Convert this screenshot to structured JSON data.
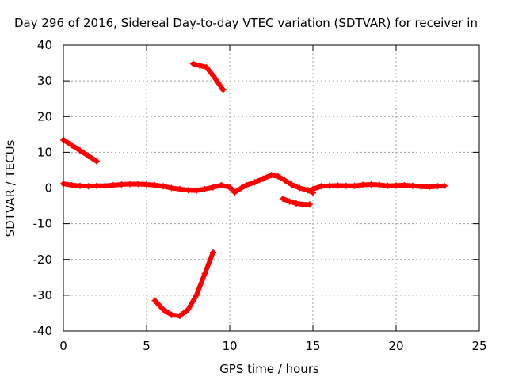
{
  "chart_data": {
    "type": "scatter",
    "title": "Day 296 of 2016, Sidereal Day-to-day VTEC variation (SDTVAR) for receiver in",
    "xlabel": "GPS time / hours",
    "ylabel": "SDTVAR / TECUs",
    "xlim": [
      0,
      25
    ],
    "ylim": [
      -40,
      40
    ],
    "xticks": [
      0,
      5,
      10,
      15,
      20,
      25
    ],
    "yticks": [
      -40,
      -30,
      -20,
      -10,
      0,
      10,
      20,
      30,
      40
    ],
    "grid": true,
    "color": "#ff0000",
    "series": [
      {
        "values": [
          [
            0.0,
            1.2
          ],
          [
            0.5,
            0.8
          ],
          [
            1.0,
            0.6
          ],
          [
            1.5,
            0.5
          ],
          [
            2.0,
            0.6
          ],
          [
            2.5,
            0.6
          ],
          [
            3.0,
            0.8
          ],
          [
            3.5,
            1.0
          ],
          [
            4.0,
            1.1
          ],
          [
            4.5,
            1.1
          ],
          [
            5.0,
            1.0
          ],
          [
            5.5,
            0.8
          ],
          [
            6.0,
            0.5
          ],
          [
            6.5,
            0.0
          ],
          [
            7.0,
            -0.3
          ],
          [
            7.5,
            -0.6
          ],
          [
            8.0,
            -0.7
          ],
          [
            8.5,
            -0.3
          ],
          [
            9.0,
            0.2
          ],
          [
            9.5,
            0.8
          ],
          [
            10.0,
            0.2
          ],
          [
            10.3,
            -1.2
          ]
        ]
      },
      {
        "values": [
          [
            10.3,
            -1.2
          ],
          [
            10.7,
            0.0
          ],
          [
            11.0,
            0.8
          ],
          [
            11.5,
            1.6
          ],
          [
            12.0,
            2.6
          ],
          [
            12.5,
            3.6
          ],
          [
            12.9,
            3.3
          ],
          [
            13.3,
            2.2
          ],
          [
            13.7,
            1.0
          ],
          [
            14.2,
            0.0
          ],
          [
            14.7,
            -0.6
          ],
          [
            15.0,
            -1.3
          ]
        ]
      },
      {
        "values": [
          [
            15.0,
            -0.3
          ],
          [
            15.5,
            0.5
          ],
          [
            16.0,
            0.6
          ],
          [
            16.5,
            0.7
          ],
          [
            17.0,
            0.6
          ],
          [
            17.5,
            0.6
          ],
          [
            18.0,
            0.9
          ],
          [
            18.5,
            1.0
          ],
          [
            19.0,
            0.9
          ],
          [
            19.5,
            0.6
          ],
          [
            20.0,
            0.7
          ],
          [
            20.5,
            0.8
          ],
          [
            21.0,
            0.6
          ],
          [
            21.5,
            0.4
          ],
          [
            22.0,
            0.3
          ],
          [
            22.5,
            0.5
          ],
          [
            22.9,
            0.6
          ]
        ]
      },
      {
        "values": [
          [
            0.0,
            13.5
          ],
          [
            0.5,
            12.0
          ],
          [
            1.0,
            10.5
          ],
          [
            1.5,
            9.0
          ],
          [
            2.0,
            7.5
          ]
        ]
      },
      {
        "values": [
          [
            7.8,
            34.8
          ],
          [
            8.2,
            34.3
          ],
          [
            8.6,
            33.8
          ],
          [
            9.0,
            31.5
          ],
          [
            9.3,
            29.5
          ],
          [
            9.6,
            27.5
          ]
        ]
      },
      {
        "values": [
          [
            13.2,
            -3.0
          ],
          [
            13.6,
            -3.8
          ],
          [
            14.0,
            -4.3
          ],
          [
            14.4,
            -4.6
          ],
          [
            14.8,
            -4.6
          ]
        ]
      },
      {
        "values": [
          [
            5.5,
            -31.5
          ],
          [
            6.0,
            -34.0
          ],
          [
            6.5,
            -35.5
          ],
          [
            7.0,
            -35.8
          ],
          [
            7.5,
            -34.0
          ],
          [
            8.0,
            -30.0
          ],
          [
            8.5,
            -24.0
          ],
          [
            9.0,
            -18.0
          ]
        ]
      }
    ]
  }
}
